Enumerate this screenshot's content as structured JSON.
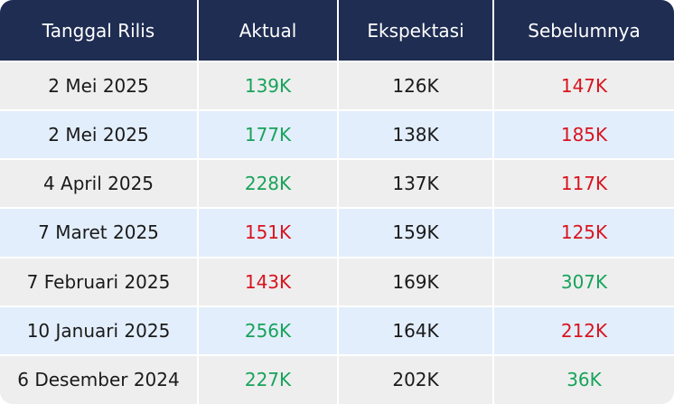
{
  "headers": [
    "Tanggal Rilis",
    "Aktual",
    "Ekspektasi",
    "Sebelumnya"
  ],
  "rows": [
    {
      "date": "2 Mei 2025",
      "actual": "139K",
      "actual_dir": "pos",
      "expected": "126K",
      "previous": "147K",
      "previous_dir": "neg"
    },
    {
      "date": "2 Mei 2025",
      "actual": "177K",
      "actual_dir": "pos",
      "expected": "138K",
      "previous": "185K",
      "previous_dir": "neg"
    },
    {
      "date": "4 April 2025",
      "actual": "228K",
      "actual_dir": "pos",
      "expected": "137K",
      "previous": "117K",
      "previous_dir": "neg"
    },
    {
      "date": "7 Maret 2025",
      "actual": "151K",
      "actual_dir": "neg",
      "expected": "159K",
      "previous": "125K",
      "previous_dir": "neg"
    },
    {
      "date": "7 Februari 2025",
      "actual": "143K",
      "actual_dir": "neg",
      "expected": "169K",
      "previous": "307K",
      "previous_dir": "pos"
    },
    {
      "date": "10 Januari 2025",
      "actual": "256K",
      "actual_dir": "pos",
      "expected": "164K",
      "previous": "212K",
      "previous_dir": "neg"
    },
    {
      "date": "6 Desember 2024",
      "actual": "227K",
      "actual_dir": "pos",
      "expected": "202K",
      "previous": "36K",
      "previous_dir": "pos"
    }
  ],
  "colors": {
    "header_bg": "#1f2d52",
    "row_odd": "#eeeeee",
    "row_even": "#e3eefc",
    "positive": "#17a35a",
    "negative": "#d8141e"
  }
}
